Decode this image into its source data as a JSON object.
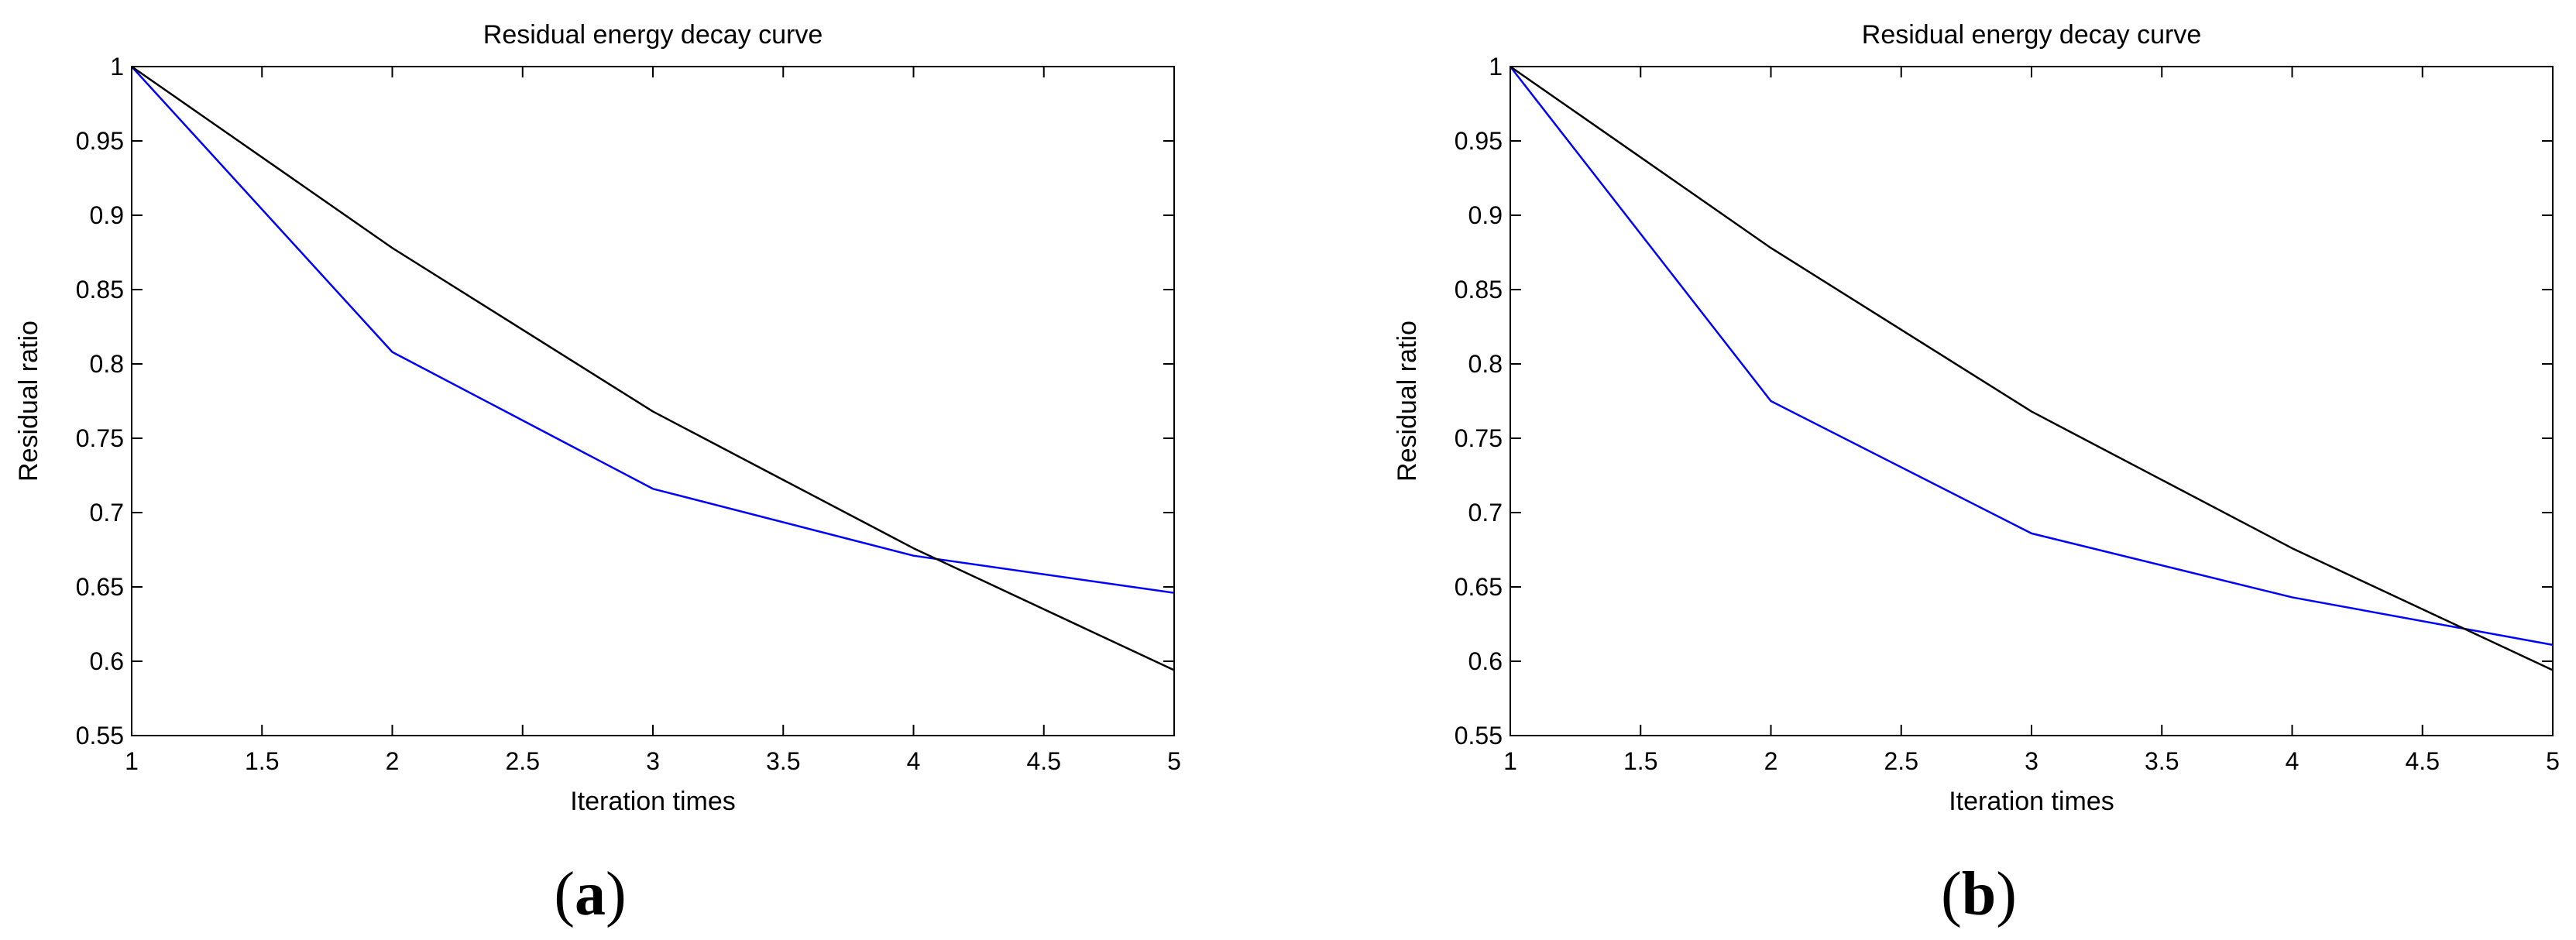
{
  "colors": {
    "series_blue": "#0000ff",
    "series_black": "#000000",
    "axes": "#000000",
    "background": "#ffffff"
  },
  "chart_data": [
    {
      "type": "line",
      "panel_label": "a",
      "title": "Residual energy decay curve",
      "xlabel": "Iteration times",
      "ylabel": "Residual ratio",
      "xlim": [
        1,
        5
      ],
      "ylim": [
        0.55,
        1
      ],
      "xticks": [
        "1",
        "1.5",
        "2",
        "2.5",
        "3",
        "3.5",
        "4",
        "4.5",
        "5"
      ],
      "yticks": [
        "0.55",
        "0.6",
        "0.65",
        "0.7",
        "0.75",
        "0.8",
        "0.85",
        "0.9",
        "0.95",
        "1"
      ],
      "grid": false,
      "x": [
        1,
        2,
        3,
        4,
        5
      ],
      "series": [
        {
          "color": "#0000ff",
          "values": [
            1.0,
            0.808,
            0.716,
            0.671,
            0.646
          ]
        },
        {
          "color": "#000000",
          "values": [
            1.0,
            0.878,
            0.768,
            0.676,
            0.594
          ]
        }
      ]
    },
    {
      "type": "line",
      "panel_label": "b",
      "title": "Residual energy decay curve",
      "xlabel": "Iteration times",
      "ylabel": "Residual ratio",
      "xlim": [
        1,
        5
      ],
      "ylim": [
        0.55,
        1
      ],
      "xticks": [
        "1",
        "1.5",
        "2",
        "2.5",
        "3",
        "3.5",
        "4",
        "4.5",
        "5"
      ],
      "yticks": [
        "0.55",
        "0.6",
        "0.65",
        "0.7",
        "0.75",
        "0.8",
        "0.85",
        "0.9",
        "0.95",
        "1"
      ],
      "grid": false,
      "x": [
        1,
        2,
        3,
        4,
        5
      ],
      "series": [
        {
          "color": "#0000ff",
          "values": [
            1.0,
            0.775,
            0.686,
            0.643,
            0.611
          ]
        },
        {
          "color": "#000000",
          "values": [
            1.0,
            0.878,
            0.768,
            0.676,
            0.594
          ]
        }
      ]
    }
  ]
}
